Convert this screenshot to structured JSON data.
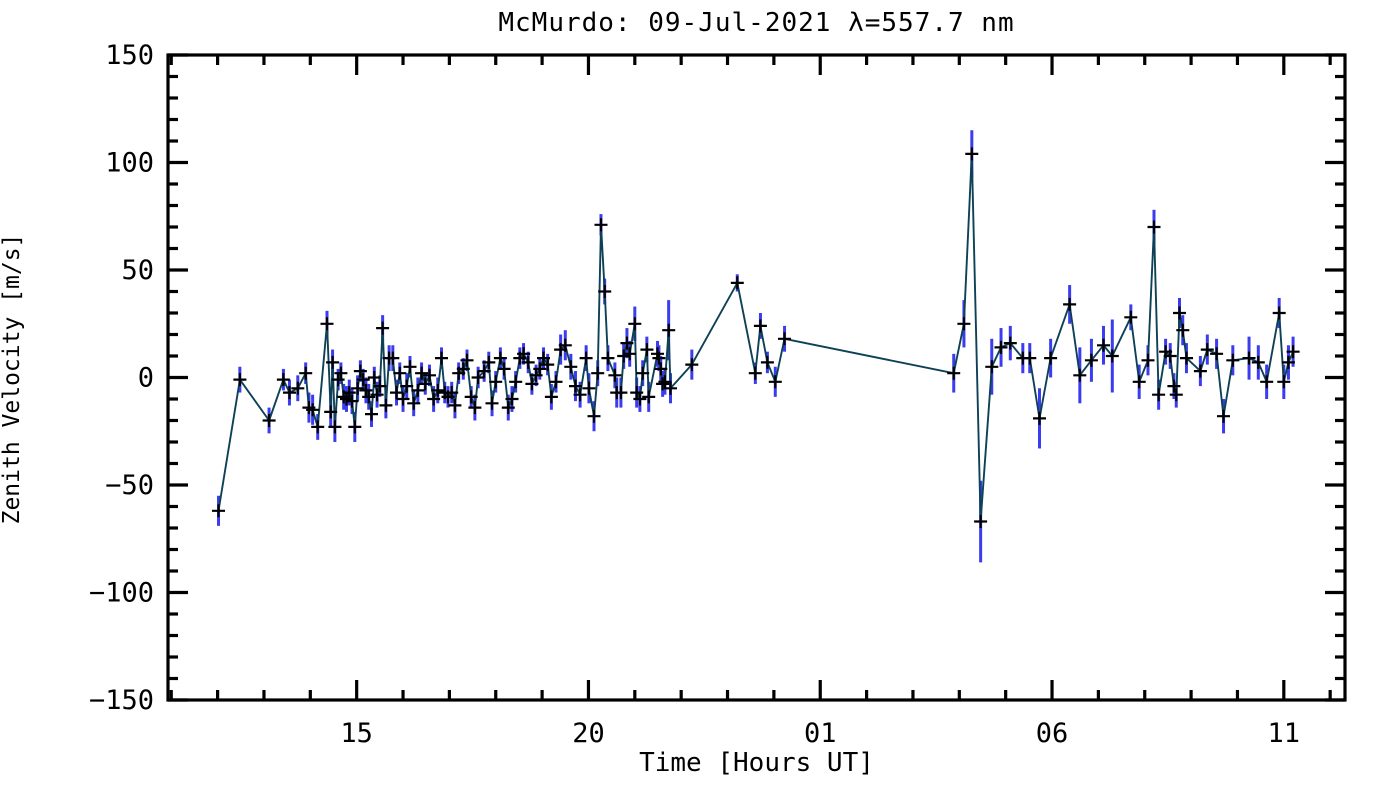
{
  "figure": {
    "title": "McMurdo: 09-Jul-2021 λ=557.7 nm",
    "x_axis_title": "Time [Hours UT]",
    "y_axis_title": "Zenith Velocity [m/s]",
    "background_color": "#ffffff"
  },
  "chart_data": {
    "type": "line",
    "title": "McMurdo: 09-Jul-2021 λ=557.7 nm",
    "xlabel": "Time [Hours UT]",
    "ylabel": "Zenith Velocity [m/s]",
    "xlim": [
      10.93,
      36.32
    ],
    "ylim": [
      -150,
      150
    ],
    "grid": false,
    "legend": "none",
    "x_major_ticks": [
      {
        "value": 15,
        "label": "15"
      },
      {
        "value": 20,
        "label": "20"
      },
      {
        "value": 25,
        "label": "01"
      },
      {
        "value": 30,
        "label": "06"
      },
      {
        "value": 35,
        "label": "11"
      }
    ],
    "x_minor_tick_step": 1,
    "y_major_ticks": [
      {
        "value": -150,
        "label": "−150"
      },
      {
        "value": -100,
        "label": "−100"
      },
      {
        "value": -50,
        "label": "−50"
      },
      {
        "value": 0,
        "label": "0"
      },
      {
        "value": 50,
        "label": "50"
      },
      {
        "value": 100,
        "label": "100"
      },
      {
        "value": 150,
        "label": "150"
      }
    ],
    "y_minor_tick_step": 10,
    "colors": {
      "line": "#0e4156",
      "error_bar": "#3b3bef",
      "marker": "#000000",
      "axis": "#000000"
    },
    "marker_style": "plus",
    "series": [
      {
        "name": "zenith_velocity",
        "units": "m/s",
        "points_format": [
          "time_hours_ut",
          "velocity_ms",
          "error_ms"
        ],
        "points": [
          [
            12.02,
            -62,
            7
          ],
          [
            12.48,
            -1,
            6
          ],
          [
            13.11,
            -20,
            6
          ],
          [
            13.42,
            -1,
            5
          ],
          [
            13.55,
            -7,
            6
          ],
          [
            13.73,
            -5,
            6
          ],
          [
            13.9,
            2,
            5
          ],
          [
            13.97,
            -14,
            7
          ],
          [
            14.05,
            -15,
            7
          ],
          [
            14.16,
            -23,
            6
          ],
          [
            14.36,
            25,
            6
          ],
          [
            14.44,
            -16,
            7
          ],
          [
            14.48,
            7,
            6
          ],
          [
            14.53,
            -23,
            7
          ],
          [
            14.6,
            -1,
            5
          ],
          [
            14.66,
            2,
            5
          ],
          [
            14.72,
            -9,
            6
          ],
          [
            14.78,
            -10,
            6
          ],
          [
            14.84,
            -7,
            6
          ],
          [
            14.9,
            -11,
            6
          ],
          [
            14.96,
            -23,
            7
          ],
          [
            15.02,
            -5,
            6
          ],
          [
            15.08,
            3,
            5
          ],
          [
            15.14,
            -1,
            5
          ],
          [
            15.2,
            -6,
            6
          ],
          [
            15.26,
            -9,
            6
          ],
          [
            15.32,
            -17,
            6
          ],
          [
            15.38,
            0,
            5
          ],
          [
            15.44,
            -8,
            6
          ],
          [
            15.5,
            -4,
            5
          ],
          [
            15.56,
            23,
            6
          ],
          [
            15.63,
            -13,
            6
          ],
          [
            15.7,
            9,
            6
          ],
          [
            15.78,
            9,
            6
          ],
          [
            15.86,
            -7,
            6
          ],
          [
            15.93,
            2,
            5
          ],
          [
            16.0,
            -10,
            6
          ],
          [
            16.08,
            -4,
            6
          ],
          [
            16.15,
            5,
            5
          ],
          [
            16.23,
            -12,
            6
          ],
          [
            16.32,
            -6,
            6
          ],
          [
            16.4,
            2,
            5
          ],
          [
            16.48,
            -3,
            5
          ],
          [
            16.57,
            1,
            5
          ],
          [
            16.66,
            -10,
            6
          ],
          [
            16.75,
            -6,
            6
          ],
          [
            16.83,
            9,
            5
          ],
          [
            16.9,
            -7,
            5
          ],
          [
            16.97,
            -9,
            5
          ],
          [
            17.05,
            -7,
            5
          ],
          [
            17.12,
            -13,
            6
          ],
          [
            17.2,
            2,
            5
          ],
          [
            17.3,
            4,
            5
          ],
          [
            17.38,
            8,
            5
          ],
          [
            17.47,
            -9,
            5
          ],
          [
            17.55,
            -14,
            6
          ],
          [
            17.62,
            0,
            5
          ],
          [
            17.75,
            3,
            5
          ],
          [
            17.85,
            7,
            5
          ],
          [
            17.92,
            -12,
            6
          ],
          [
            18.0,
            -2,
            5
          ],
          [
            18.1,
            9,
            5
          ],
          [
            18.18,
            4,
            5
          ],
          [
            18.27,
            -14,
            6
          ],
          [
            18.35,
            -10,
            6
          ],
          [
            18.43,
            -2,
            5
          ],
          [
            18.52,
            9,
            5
          ],
          [
            18.6,
            11,
            5
          ],
          [
            18.7,
            7,
            5
          ],
          [
            18.78,
            -3,
            5
          ],
          [
            18.87,
            1,
            5
          ],
          [
            18.95,
            4,
            5
          ],
          [
            19.03,
            9,
            5
          ],
          [
            19.12,
            6,
            5
          ],
          [
            19.2,
            -9,
            6
          ],
          [
            19.3,
            -2,
            5
          ],
          [
            19.4,
            13,
            7
          ],
          [
            19.5,
            15,
            7
          ],
          [
            19.62,
            5,
            6
          ],
          [
            19.72,
            -4,
            7
          ],
          [
            19.82,
            -8,
            6
          ],
          [
            19.95,
            9,
            6
          ],
          [
            20.01,
            -5,
            7
          ],
          [
            20.12,
            -18,
            7
          ],
          [
            20.2,
            2,
            6
          ],
          [
            20.27,
            71,
            5
          ],
          [
            20.35,
            40,
            6
          ],
          [
            20.42,
            9,
            6
          ],
          [
            20.57,
            1,
            6
          ],
          [
            20.61,
            -7,
            7
          ],
          [
            20.7,
            -7,
            7
          ],
          [
            20.76,
            10,
            6
          ],
          [
            20.83,
            16,
            7
          ],
          [
            20.89,
            11,
            6
          ],
          [
            21.0,
            25,
            8
          ],
          [
            21.04,
            -7,
            7
          ],
          [
            21.11,
            -10,
            6
          ],
          [
            21.17,
            2,
            6
          ],
          [
            21.26,
            13,
            6
          ],
          [
            21.3,
            -9,
            7
          ],
          [
            21.49,
            11,
            6
          ],
          [
            21.52,
            9,
            6
          ],
          [
            21.56,
            4,
            6
          ],
          [
            21.6,
            -3,
            6
          ],
          [
            21.65,
            -2,
            6
          ],
          [
            21.73,
            22,
            14
          ],
          [
            21.77,
            -5,
            7
          ],
          [
            22.23,
            6,
            7
          ],
          [
            23.21,
            44,
            4
          ],
          [
            23.6,
            2,
            5
          ],
          [
            23.71,
            24,
            6
          ],
          [
            23.86,
            7,
            5
          ],
          [
            24.03,
            -2,
            7
          ],
          [
            24.23,
            18,
            6
          ],
          [
            27.88,
            2,
            9
          ],
          [
            28.1,
            25,
            11
          ],
          [
            28.27,
            104,
            11
          ],
          [
            28.46,
            -67,
            19
          ],
          [
            28.7,
            5,
            13
          ],
          [
            28.9,
            14,
            9
          ],
          [
            29.1,
            16,
            8
          ],
          [
            29.37,
            9,
            7
          ],
          [
            29.52,
            9,
            7
          ],
          [
            29.73,
            -19,
            14
          ],
          [
            29.97,
            9,
            9
          ],
          [
            30.38,
            34,
            9
          ],
          [
            30.6,
            1,
            13
          ],
          [
            30.85,
            8,
            10
          ],
          [
            31.11,
            15,
            9
          ],
          [
            31.3,
            10,
            17
          ],
          [
            31.7,
            28,
            6
          ],
          [
            31.88,
            -2,
            8
          ],
          [
            32.07,
            8,
            7
          ],
          [
            32.2,
            70,
            8
          ],
          [
            32.3,
            -8,
            7
          ],
          [
            32.45,
            12,
            6
          ],
          [
            32.55,
            10,
            6
          ],
          [
            32.63,
            -4,
            6
          ],
          [
            32.68,
            -8,
            6
          ],
          [
            32.75,
            30,
            7
          ],
          [
            32.82,
            22,
            7
          ],
          [
            32.9,
            9,
            7
          ],
          [
            33.2,
            3,
            7
          ],
          [
            33.35,
            13,
            7
          ],
          [
            33.55,
            11,
            7
          ],
          [
            33.7,
            -18,
            8
          ],
          [
            33.9,
            8,
            7
          ],
          [
            34.25,
            9,
            10
          ],
          [
            34.45,
            7,
            8
          ],
          [
            34.63,
            -2,
            8
          ],
          [
            34.9,
            30,
            7
          ],
          [
            35.0,
            -2,
            8
          ],
          [
            35.1,
            7,
            8
          ],
          [
            35.2,
            12,
            7
          ]
        ]
      }
    ]
  }
}
